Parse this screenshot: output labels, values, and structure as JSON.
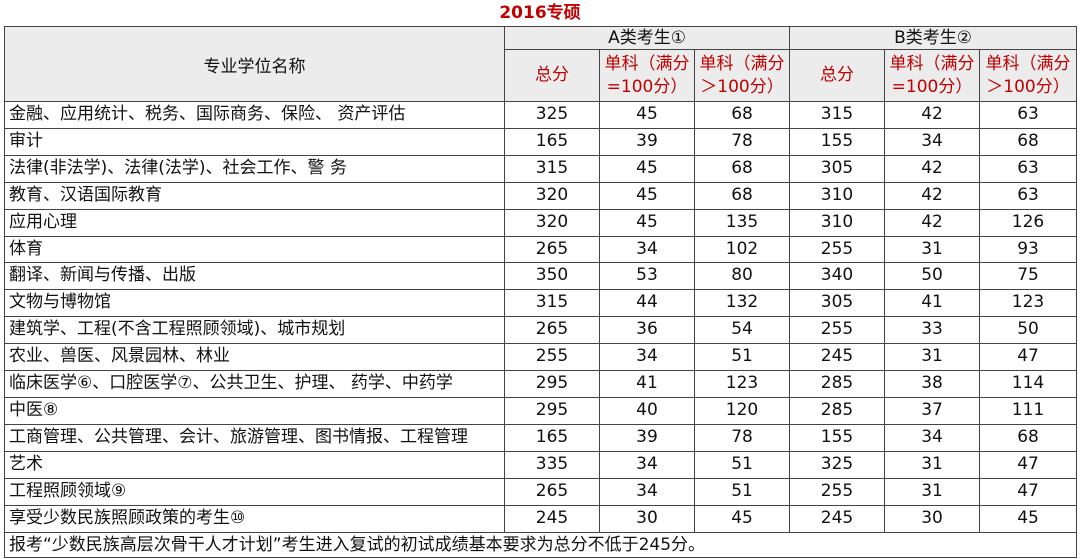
{
  "title": "2016专硕",
  "table": {
    "header": {
      "name": "专业学位名称",
      "groups": [
        "A类考生①",
        "B类考生②"
      ],
      "sub": [
        [
          "总分"
        ],
        [
          "单科（满分",
          "=100分）"
        ],
        [
          "单科（满分",
          "＞100分）"
        ],
        [
          "总分"
        ],
        [
          "单科（满分",
          "=100分）"
        ],
        [
          "单科（满分",
          "＞100分）"
        ]
      ]
    },
    "rows": [
      [
        "金融、应用统计、税务、国际商务、保险、 资产评估",
        325,
        45,
        68,
        315,
        42,
        63
      ],
      [
        "审计",
        165,
        39,
        78,
        155,
        34,
        68
      ],
      [
        "法律(非法学)、法律(法学)、社会工作、警 务",
        315,
        45,
        68,
        305,
        42,
        63
      ],
      [
        "教育、汉语国际教育",
        320,
        45,
        68,
        310,
        42,
        63
      ],
      [
        "应用心理",
        320,
        45,
        135,
        310,
        42,
        126
      ],
      [
        "体育",
        265,
        34,
        102,
        255,
        31,
        93
      ],
      [
        "翻译、新闻与传播、出版",
        350,
        53,
        80,
        340,
        50,
        75
      ],
      [
        "文物与博物馆",
        315,
        44,
        132,
        305,
        41,
        123
      ],
      [
        "建筑学、工程(不含工程照顾领域)、城市规划",
        265,
        36,
        54,
        255,
        33,
        50
      ],
      [
        "农业、兽医、风景园林、林业",
        255,
        34,
        51,
        245,
        31,
        47
      ],
      [
        "临床医学⑥、口腔医学⑦、公共卫生、护理、 药学、中药学",
        295,
        41,
        123,
        285,
        38,
        114
      ],
      [
        "中医⑧",
        295,
        40,
        120,
        285,
        37,
        111
      ],
      [
        "工商管理、公共管理、会计、旅游管理、图书情报、工程管理",
        165,
        39,
        78,
        155,
        34,
        68
      ],
      [
        "艺术",
        335,
        34,
        51,
        325,
        31,
        47
      ],
      [
        "工程照顾领域⑨",
        265,
        34,
        51,
        255,
        31,
        47
      ],
      [
        "享受少数民族照顾政策的考生⑩",
        245,
        30,
        45,
        245,
        30,
        45
      ]
    ],
    "footer": "报考“少数民族高层次骨干人才计划”考生进入复试的初试成绩基本要求为总分不低于245分。"
  }
}
